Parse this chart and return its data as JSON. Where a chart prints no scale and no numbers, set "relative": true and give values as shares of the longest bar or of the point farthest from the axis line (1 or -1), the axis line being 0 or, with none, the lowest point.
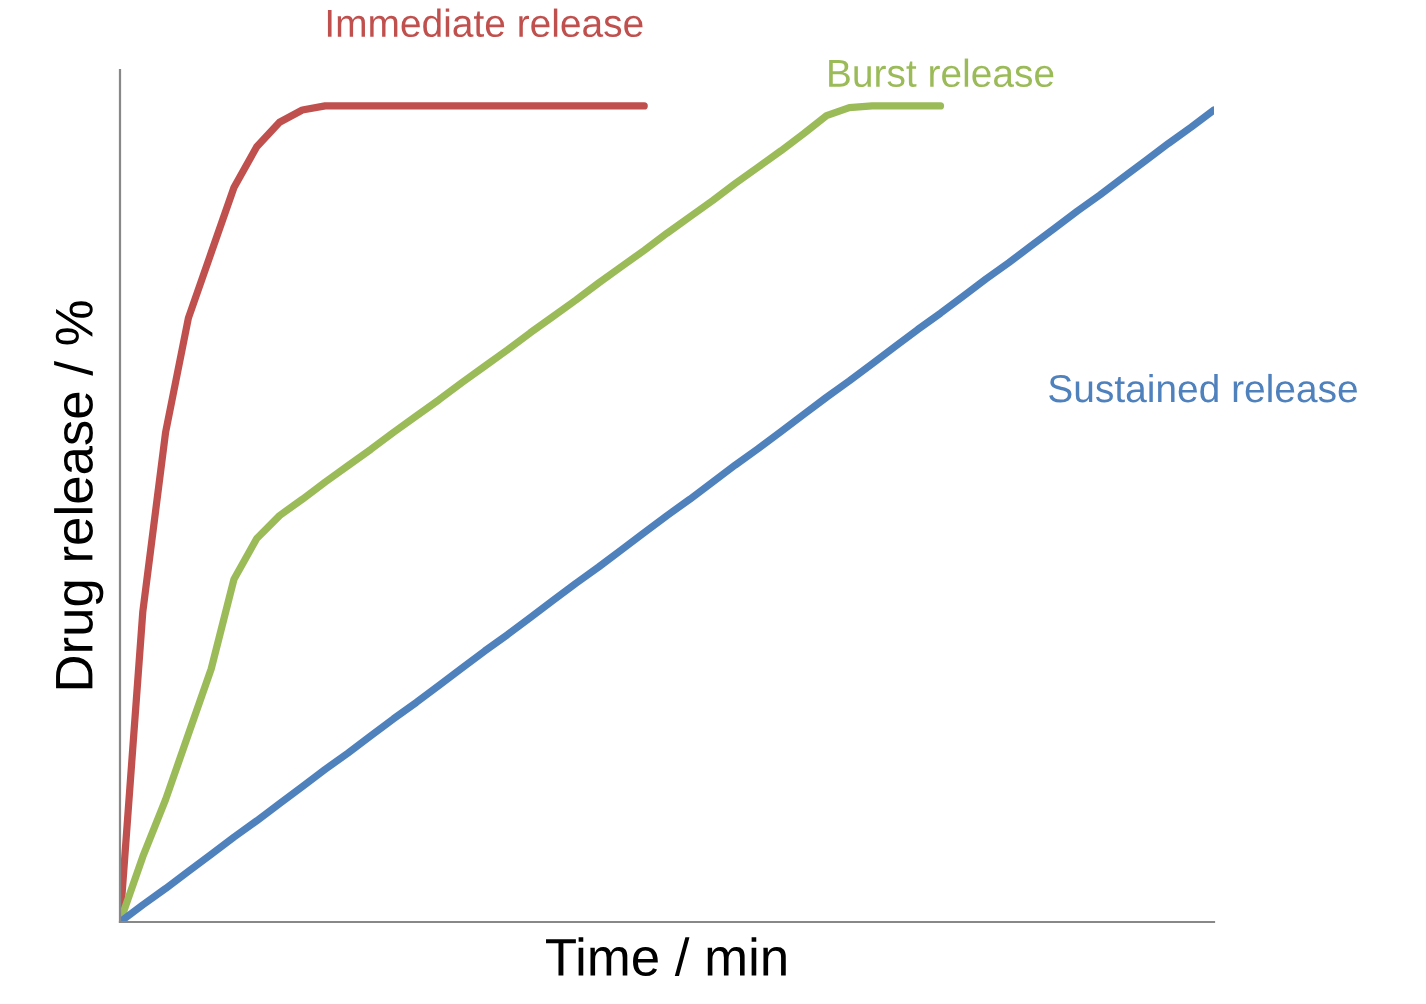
{
  "chart_data": {
    "type": "line",
    "relative": true,
    "xlabel": "Time / min",
    "ylabel": "Drug release / %",
    "grid": false,
    "legend": false,
    "marker": "none",
    "line_style": "solid",
    "categories": [
      null,
      null,
      null,
      null,
      null,
      null,
      null,
      null,
      null,
      null,
      null,
      null,
      null,
      null,
      null,
      null,
      null,
      null,
      null,
      null,
      null,
      null,
      null,
      null,
      null,
      null,
      null,
      null,
      null,
      null,
      null,
      null,
      null,
      null,
      null,
      null,
      null,
      null,
      null,
      null,
      null,
      null,
      null,
      null,
      null,
      null,
      null,
      null,
      null
    ],
    "series": [
      {
        "name": "Immediate release",
        "color": "#c0504d",
        "values": [
          0,
          0.38,
          0.6,
          0.74,
          0.82,
          0.9,
          0.95,
          0.98,
          0.995,
          1,
          1,
          1,
          1,
          1,
          1,
          1,
          1,
          1,
          1,
          1,
          1,
          1,
          1,
          1,
          null,
          null,
          null,
          null,
          null,
          null,
          null,
          null,
          null,
          null,
          null,
          null,
          null,
          null,
          null,
          null,
          null,
          null,
          null,
          null,
          null,
          null,
          null,
          null,
          null
        ]
      },
      {
        "name": "Burst release",
        "color": "#9bbb59",
        "values": [
          0,
          0.08,
          0.15,
          0.23,
          0.31,
          0.42,
          0.47,
          0.498,
          0.518,
          0.539,
          0.559,
          0.579,
          0.6,
          0.62,
          0.64,
          0.661,
          0.681,
          0.701,
          0.722,
          0.742,
          0.762,
          0.783,
          0.803,
          0.823,
          0.844,
          0.864,
          0.884,
          0.905,
          0.925,
          0.945,
          0.966,
          0.988,
          0.998,
          1,
          1,
          1,
          1,
          null,
          null,
          null,
          null,
          null,
          null,
          null,
          null,
          null,
          null,
          null,
          null
        ]
      },
      {
        "name": "Sustained release",
        "color": "#4f81bd",
        "values": [
          0,
          0.021,
          0.041,
          0.062,
          0.083,
          0.104,
          0.124,
          0.145,
          0.166,
          0.187,
          0.207,
          0.228,
          0.249,
          0.269,
          0.29,
          0.311,
          0.332,
          0.352,
          0.373,
          0.394,
          0.415,
          0.435,
          0.456,
          0.477,
          0.498,
          0.518,
          0.539,
          0.56,
          0.58,
          0.601,
          0.622,
          0.643,
          0.663,
          0.684,
          0.705,
          0.726,
          0.746,
          0.767,
          0.788,
          0.808,
          0.829,
          0.85,
          0.871,
          0.891,
          0.912,
          0.933,
          0.954,
          0.974,
          0.995
        ]
      }
    ]
  }
}
